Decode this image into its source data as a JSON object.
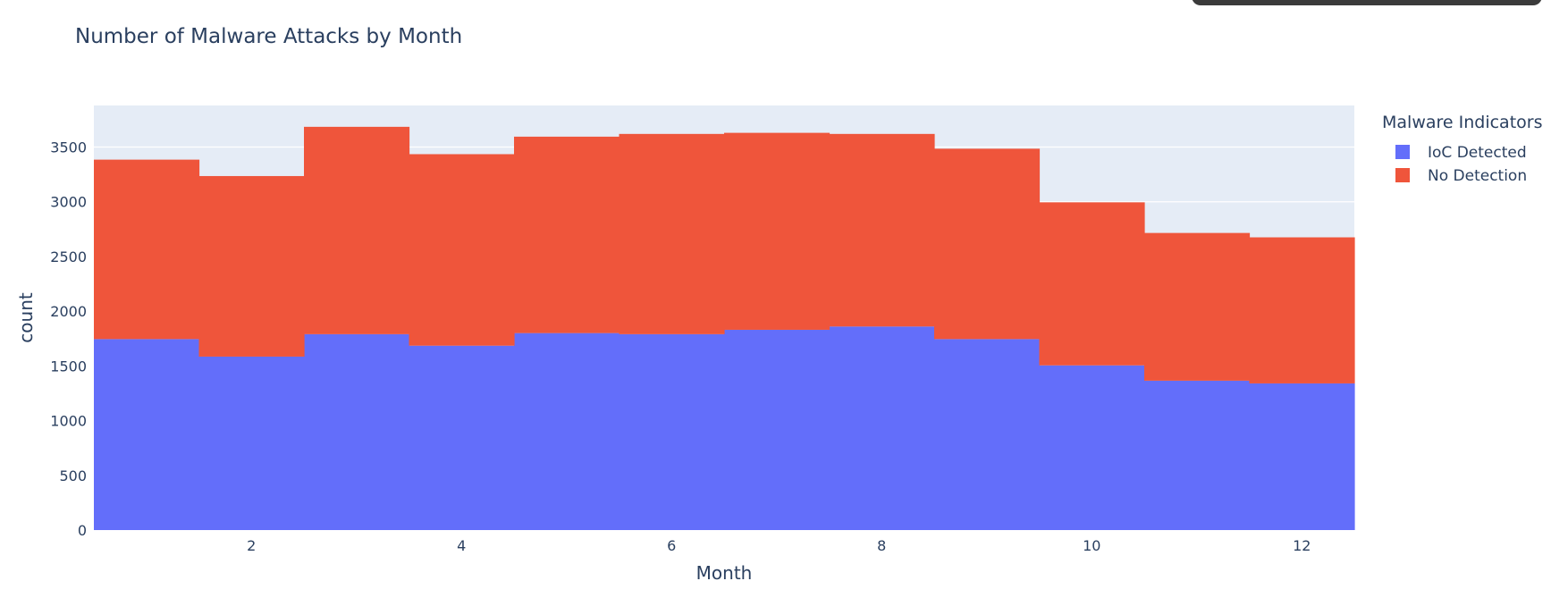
{
  "colors": {
    "plot_background": "#e5ecf6",
    "gridline": "#ffffff",
    "ioc_detected": "#636efa",
    "no_detection": "#ef553b",
    "text": "#2a3f5f"
  },
  "chart_data": {
    "type": "bar",
    "title": "Number of Malware Attacks by Month",
    "xlabel": "Month",
    "ylabel": "count",
    "barmode": "stack",
    "x": [
      1,
      2,
      3,
      4,
      5,
      6,
      7,
      8,
      9,
      10,
      11,
      12
    ],
    "xlim": [
      0.5,
      12.5
    ],
    "ylim": [
      0,
      3880
    ],
    "x_ticks": [
      2,
      4,
      6,
      8,
      10,
      12
    ],
    "y_ticks": [
      0,
      500,
      1000,
      1500,
      2000,
      2500,
      3000,
      3500
    ],
    "grid": true,
    "legend": {
      "title": "Malware Indicators",
      "position": "right"
    },
    "series": [
      {
        "name": "IoC Detected",
        "color": "#636efa",
        "values": [
          1745,
          1585,
          1790,
          1685,
          1800,
          1790,
          1830,
          1860,
          1745,
          1505,
          1365,
          1340
        ]
      },
      {
        "name": "No Detection",
        "color": "#ef553b",
        "values": [
          1640,
          1650,
          1895,
          1750,
          1795,
          1830,
          1800,
          1760,
          1740,
          1490,
          1350,
          1335
        ]
      }
    ]
  }
}
